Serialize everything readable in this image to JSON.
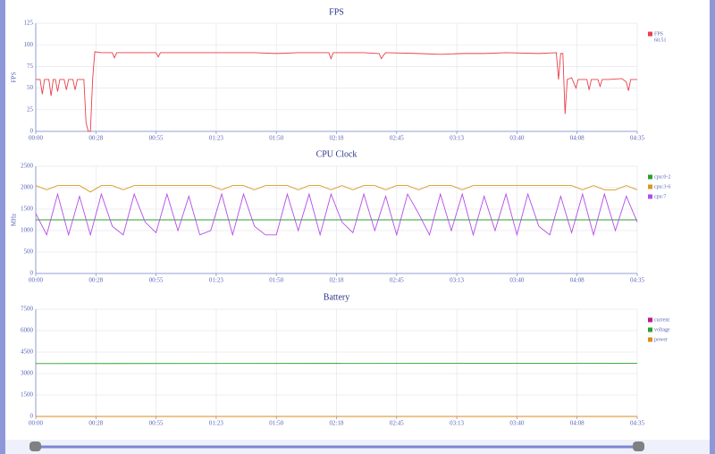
{
  "chart_data": [
    {
      "type": "line",
      "title": "FPS",
      "y_label": "FPS",
      "grid": true,
      "legend": "right",
      "x": [
        0,
        2,
        3,
        4,
        6,
        7,
        8,
        9,
        10,
        11,
        13,
        14,
        15,
        17,
        18,
        19,
        22,
        23,
        24,
        25,
        26,
        27,
        30,
        35,
        36,
        37,
        50,
        55,
        56,
        57,
        70,
        90,
        100,
        110,
        120,
        134,
        135,
        136,
        150,
        157,
        158,
        159,
        160,
        175,
        185,
        195,
        205,
        215,
        230,
        238,
        239,
        240,
        241,
        242,
        243,
        245,
        247,
        248,
        252,
        253,
        254,
        256,
        257,
        258,
        259,
        262,
        268,
        270,
        271,
        272,
        275
      ],
      "xlim": [
        0,
        275
      ],
      "xticks": [
        {
          "value": 0,
          "label": "00:00"
        },
        {
          "value": 27.5,
          "label": "00:28"
        },
        {
          "value": 55,
          "label": "00:55"
        },
        {
          "value": 82.5,
          "label": "01:23"
        },
        {
          "value": 110,
          "label": "01:50"
        },
        {
          "value": 137.5,
          "label": "02:18"
        },
        {
          "value": 165,
          "label": "02:45"
        },
        {
          "value": 192.5,
          "label": "03:13"
        },
        {
          "value": 220,
          "label": "03:40"
        },
        {
          "value": 247.5,
          "label": "04:08"
        },
        {
          "value": 275,
          "label": "04:35"
        }
      ],
      "ylim": [
        0,
        125
      ],
      "yticks": [
        0,
        25,
        50,
        75,
        100,
        125
      ],
      "series": [
        {
          "name": "FPS",
          "legend_value": "60.51",
          "color": "#e8404a",
          "values": [
            60,
            60,
            43,
            60,
            60,
            41,
            60,
            60,
            46,
            60,
            60,
            48,
            60,
            60,
            48,
            60,
            60,
            10,
            0,
            0,
            60,
            92,
            91,
            91,
            85,
            91,
            91,
            91,
            86,
            91,
            91,
            91,
            91,
            90,
            91,
            91,
            84,
            91,
            91,
            90,
            84,
            88,
            91,
            90,
            89,
            90,
            90,
            91,
            90,
            91,
            60,
            90,
            90,
            20,
            60,
            62,
            50,
            60,
            60,
            48,
            60,
            60,
            60,
            52,
            60,
            60,
            61,
            57,
            47,
            60,
            60
          ]
        }
      ]
    },
    {
      "type": "line",
      "title": "CPU Clock",
      "y_label": "MHz",
      "grid": true,
      "legend": "right",
      "x": [
        0,
        5,
        10,
        15,
        20,
        25,
        30,
        35,
        40,
        45,
        50,
        55,
        60,
        65,
        70,
        75,
        80,
        85,
        90,
        95,
        100,
        105,
        110,
        115,
        120,
        125,
        130,
        135,
        140,
        145,
        150,
        155,
        160,
        165,
        170,
        175,
        180,
        185,
        190,
        195,
        200,
        205,
        210,
        215,
        220,
        225,
        230,
        235,
        240,
        245,
        250,
        255,
        260,
        265,
        270,
        275
      ],
      "xlim": [
        0,
        275
      ],
      "xticks": [
        {
          "value": 0,
          "label": "00:00"
        },
        {
          "value": 27.5,
          "label": "00:28"
        },
        {
          "value": 55,
          "label": "00:55"
        },
        {
          "value": 82.5,
          "label": "01:23"
        },
        {
          "value": 110,
          "label": "01:50"
        },
        {
          "value": 137.5,
          "label": "02:18"
        },
        {
          "value": 165,
          "label": "02:45"
        },
        {
          "value": 192.5,
          "label": "03:13"
        },
        {
          "value": 220,
          "label": "03:40"
        },
        {
          "value": 247.5,
          "label": "04:08"
        },
        {
          "value": 275,
          "label": "04:35"
        }
      ],
      "ylim": [
        0,
        2500
      ],
      "yticks": [
        0,
        500,
        1000,
        1500,
        2000,
        2500
      ],
      "series": [
        {
          "name": "cpu:0-2",
          "color": "#2ca02c",
          "values": [
            1250,
            1250,
            1250,
            1250,
            1250,
            1250,
            1250,
            1250,
            1250,
            1250,
            1250,
            1250,
            1250,
            1250,
            1250,
            1250,
            1250,
            1250,
            1250,
            1250,
            1250,
            1250,
            1250,
            1250,
            1250,
            1250,
            1250,
            1250,
            1250,
            1250,
            1250,
            1250,
            1250,
            1250,
            1250,
            1250,
            1250,
            1250,
            1250,
            1250,
            1250,
            1250,
            1250,
            1250,
            1250,
            1250,
            1250,
            1250,
            1250,
            1250,
            1250,
            1250,
            1250,
            1250,
            1250,
            1250
          ]
        },
        {
          "name": "cpu:3-6",
          "color": "#d99a1e",
          "values": [
            2050,
            1950,
            2050,
            2050,
            2050,
            1900,
            2050,
            2050,
            1950,
            2050,
            2050,
            2050,
            2050,
            2050,
            2050,
            2050,
            2050,
            1950,
            2050,
            2050,
            1950,
            2050,
            2050,
            2050,
            1950,
            2050,
            2050,
            1950,
            2050,
            1950,
            2050,
            2050,
            1950,
            2050,
            2050,
            1950,
            2050,
            2050,
            2050,
            1950,
            2050,
            2050,
            2050,
            2050,
            2050,
            2050,
            2050,
            2050,
            2050,
            2050,
            1950,
            2050,
            1950,
            1950,
            2050,
            1950
          ]
        },
        {
          "name": "cpu:7",
          "color": "#b44ee8",
          "values": [
            1400,
            900,
            1850,
            900,
            1800,
            900,
            1850,
            1100,
            900,
            1850,
            1200,
            950,
            1850,
            1000,
            1800,
            900,
            1000,
            1850,
            900,
            1850,
            1100,
            900,
            900,
            1850,
            1000,
            1850,
            900,
            1850,
            1200,
            950,
            1850,
            1000,
            1800,
            900,
            1850,
            1400,
            900,
            1850,
            1000,
            1850,
            900,
            1800,
            1000,
            1850,
            900,
            1850,
            1100,
            900,
            1800,
            950,
            1850,
            900,
            1850,
            1000,
            1800,
            1200
          ]
        }
      ]
    },
    {
      "type": "line",
      "title": "Battery",
      "grid": true,
      "legend": "right",
      "x": [
        0,
        275
      ],
      "xlim": [
        0,
        275
      ],
      "xticks": [
        {
          "value": 0,
          "label": "00:00"
        },
        {
          "value": 27.5,
          "label": "00:28"
        },
        {
          "value": 55,
          "label": "00:55"
        },
        {
          "value": 82.5,
          "label": "01:23"
        },
        {
          "value": 110,
          "label": "01:50"
        },
        {
          "value": 137.5,
          "label": "02:18"
        },
        {
          "value": 165,
          "label": "02:45"
        },
        {
          "value": 192.5,
          "label": "03:13"
        },
        {
          "value": 220,
          "label": "03:40"
        },
        {
          "value": 247.5,
          "label": "04:08"
        },
        {
          "value": 275,
          "label": "04:35"
        }
      ],
      "ylim": [
        0,
        7500
      ],
      "yticks": [
        0,
        1500,
        3000,
        4500,
        6000,
        7500
      ],
      "series": [
        {
          "name": "current",
          "color": "#c0188c",
          "values": [
            0,
            0
          ]
        },
        {
          "name": "voltage",
          "color": "#2ca02c",
          "values": [
            3700,
            3720
          ]
        },
        {
          "name": "power",
          "color": "#e08a1e",
          "values": [
            0,
            0
          ]
        }
      ]
    }
  ]
}
